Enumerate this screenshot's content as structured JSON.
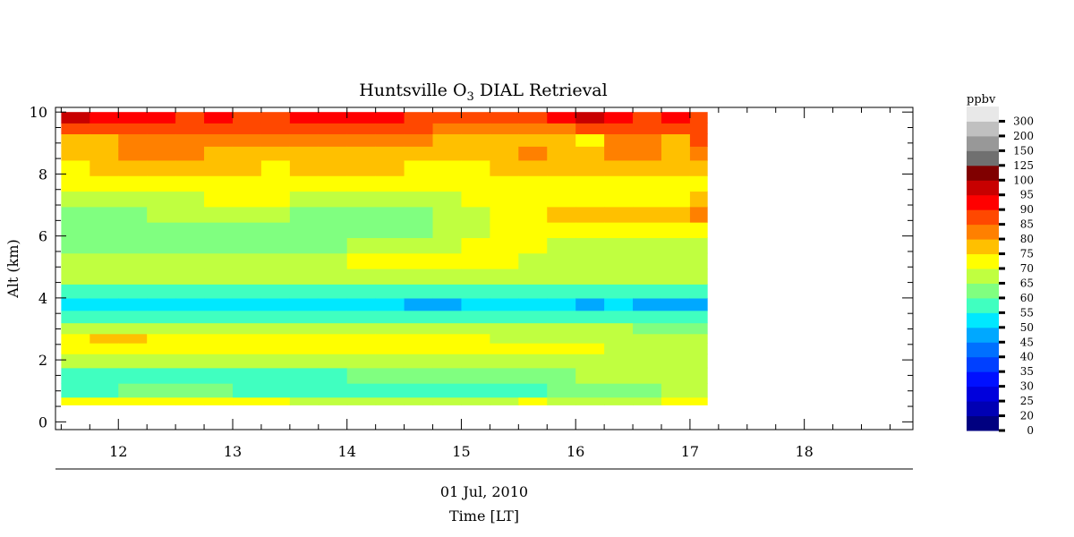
{
  "chart_data": {
    "type": "heatmap",
    "title_prefix": "Huntsville O",
    "title_subscript": "3",
    "title_suffix": " DIAL Retrieval",
    "xlabel": "Time [LT]",
    "date_label": "01 Jul, 2010",
    "ylabel": "Alt (km)",
    "xlim": [
      11.45,
      18.95
    ],
    "ylim": [
      -0.25,
      10.15
    ],
    "x_ticks": [
      12,
      13,
      14,
      15,
      16,
      17,
      18
    ],
    "y_ticks": [
      0,
      2,
      4,
      6,
      8,
      10
    ],
    "data_time_range": [
      11.5,
      17.15
    ],
    "data_alt_range": [
      0.55,
      10.0
    ],
    "colorbar": {
      "unit": "ppbv",
      "levels": [
        "0",
        "20",
        "25",
        "30",
        "35",
        "40",
        "45",
        "50",
        "55",
        "60",
        "65",
        "70",
        "75",
        "80",
        "85",
        "90",
        "95",
        "100",
        "125",
        "150",
        "200",
        "300"
      ],
      "colors": [
        "#000080",
        "#0000b4",
        "#0000dc",
        "#0010ff",
        "#0040ff",
        "#0070ff",
        "#00a8ff",
        "#00e8ff",
        "#40ffc0",
        "#80ff80",
        "#c0ff40",
        "#ffff00",
        "#ffc000",
        "#ff8000",
        "#ff4800",
        "#ff0000",
        "#c80000",
        "#800000",
        "#707070",
        "#989898",
        "#c0c0c0",
        "#e8e8e8"
      ]
    },
    "profile_altitudes_km": [
      0.6,
      1.0,
      1.5,
      2.0,
      2.4,
      2.7,
      3.0,
      3.4,
      3.8,
      4.2,
      4.7,
      5.2,
      5.7,
      6.2,
      6.7,
      7.2,
      7.7,
      8.2,
      8.7,
      9.1,
      9.5,
      9.8
    ],
    "ozone_ppbv": [
      {
        "time": 11.5,
        "values": [
          70,
          55,
          55,
          65,
          70,
          70,
          65,
          55,
          50,
          55,
          65,
          65,
          60,
          60,
          60,
          65,
          70,
          70,
          75,
          75,
          85,
          95
        ]
      },
      {
        "time": 11.75,
        "values": [
          70,
          55,
          55,
          65,
          70,
          75,
          65,
          55,
          50,
          55,
          65,
          65,
          60,
          60,
          60,
          65,
          70,
          75,
          75,
          75,
          85,
          90
        ]
      },
      {
        "time": 12.0,
        "values": [
          70,
          60,
          55,
          65,
          70,
          75,
          65,
          55,
          50,
          55,
          65,
          65,
          60,
          60,
          60,
          65,
          70,
          75,
          80,
          80,
          85,
          90
        ]
      },
      {
        "time": 12.25,
        "values": [
          70,
          60,
          55,
          65,
          70,
          70,
          65,
          55,
          50,
          55,
          65,
          65,
          60,
          60,
          65,
          65,
          70,
          75,
          80,
          80,
          85,
          90
        ]
      },
      {
        "time": 12.5,
        "values": [
          70,
          60,
          55,
          65,
          70,
          70,
          65,
          55,
          50,
          55,
          65,
          65,
          60,
          60,
          65,
          65,
          70,
          75,
          80,
          80,
          85,
          85
        ]
      },
      {
        "time": 12.75,
        "values": [
          70,
          60,
          55,
          65,
          70,
          70,
          65,
          55,
          50,
          55,
          65,
          65,
          60,
          60,
          65,
          70,
          70,
          75,
          75,
          80,
          85,
          90
        ]
      },
      {
        "time": 13.0,
        "values": [
          70,
          55,
          55,
          65,
          70,
          70,
          65,
          55,
          50,
          55,
          65,
          65,
          60,
          60,
          65,
          70,
          70,
          75,
          75,
          80,
          85,
          85
        ]
      },
      {
        "time": 13.25,
        "values": [
          70,
          55,
          55,
          65,
          70,
          70,
          65,
          55,
          50,
          55,
          65,
          65,
          60,
          60,
          65,
          70,
          70,
          70,
          75,
          80,
          85,
          85
        ]
      },
      {
        "time": 13.5,
        "values": [
          65,
          55,
          55,
          65,
          70,
          70,
          65,
          55,
          50,
          55,
          65,
          65,
          60,
          60,
          60,
          65,
          70,
          75,
          75,
          80,
          85,
          90
        ]
      },
      {
        "time": 13.75,
        "values": [
          65,
          55,
          55,
          65,
          70,
          70,
          65,
          55,
          50,
          55,
          65,
          65,
          60,
          60,
          60,
          65,
          70,
          75,
          75,
          80,
          85,
          90
        ]
      },
      {
        "time": 14.0,
        "values": [
          65,
          55,
          60,
          65,
          70,
          70,
          65,
          55,
          50,
          55,
          65,
          70,
          65,
          60,
          60,
          65,
          70,
          75,
          75,
          80,
          85,
          90
        ]
      },
      {
        "time": 14.25,
        "values": [
          65,
          55,
          60,
          65,
          70,
          70,
          65,
          55,
          50,
          55,
          65,
          70,
          65,
          60,
          60,
          65,
          70,
          75,
          75,
          80,
          85,
          90
        ]
      },
      {
        "time": 14.5,
        "values": [
          65,
          55,
          60,
          65,
          70,
          70,
          65,
          55,
          45,
          55,
          65,
          70,
          65,
          60,
          60,
          65,
          70,
          70,
          75,
          80,
          85,
          85
        ]
      },
      {
        "time": 14.75,
        "values": [
          65,
          55,
          60,
          65,
          70,
          70,
          65,
          55,
          45,
          55,
          65,
          70,
          65,
          65,
          65,
          65,
          70,
          70,
          75,
          75,
          80,
          85
        ]
      },
      {
        "time": 15.0,
        "values": [
          65,
          55,
          60,
          65,
          70,
          70,
          65,
          55,
          50,
          55,
          65,
          70,
          70,
          65,
          65,
          70,
          70,
          70,
          75,
          75,
          80,
          85
        ]
      },
      {
        "time": 15.25,
        "values": [
          65,
          55,
          60,
          65,
          70,
          65,
          65,
          55,
          50,
          55,
          65,
          70,
          70,
          70,
          70,
          70,
          70,
          75,
          75,
          75,
          80,
          85
        ]
      },
      {
        "time": 15.5,
        "values": [
          70,
          55,
          60,
          65,
          70,
          65,
          65,
          55,
          50,
          55,
          65,
          65,
          70,
          70,
          70,
          70,
          70,
          75,
          80,
          75,
          80,
          85
        ]
      },
      {
        "time": 15.75,
        "values": [
          65,
          60,
          60,
          65,
          70,
          65,
          65,
          55,
          50,
          55,
          65,
          65,
          65,
          70,
          75,
          70,
          70,
          75,
          75,
          75,
          80,
          90
        ]
      },
      {
        "time": 16.0,
        "values": [
          65,
          60,
          65,
          65,
          70,
          65,
          65,
          55,
          45,
          55,
          65,
          65,
          65,
          70,
          75,
          70,
          70,
          75,
          75,
          70,
          85,
          95
        ]
      },
      {
        "time": 16.25,
        "values": [
          65,
          60,
          65,
          65,
          65,
          65,
          65,
          55,
          50,
          55,
          65,
          65,
          65,
          70,
          75,
          70,
          70,
          75,
          80,
          80,
          85,
          90
        ]
      },
      {
        "time": 16.5,
        "values": [
          65,
          60,
          65,
          65,
          65,
          65,
          60,
          55,
          45,
          55,
          65,
          65,
          65,
          70,
          75,
          70,
          70,
          75,
          80,
          80,
          85,
          85
        ]
      },
      {
        "time": 16.75,
        "values": [
          70,
          65,
          65,
          65,
          65,
          65,
          60,
          55,
          45,
          55,
          65,
          65,
          65,
          70,
          75,
          70,
          70,
          75,
          75,
          75,
          85,
          90
        ]
      },
      {
        "time": 17.0,
        "values": [
          70,
          65,
          65,
          65,
          65,
          65,
          60,
          55,
          45,
          55,
          65,
          65,
          65,
          70,
          80,
          75,
          70,
          75,
          80,
          85,
          85,
          85
        ]
      }
    ]
  }
}
